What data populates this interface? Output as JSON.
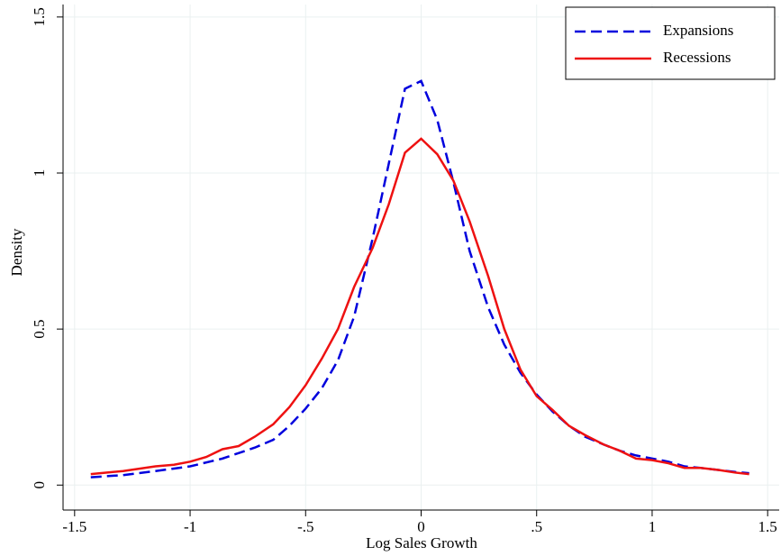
{
  "chart_data": {
    "type": "line",
    "xlabel": "Log Sales Growth",
    "ylabel": "Density",
    "xlim": [
      -1.55,
      1.55
    ],
    "ylim": [
      -0.08,
      1.54
    ],
    "xticks": [
      -1.5,
      -1,
      {
        "value": -0.5,
        "label": "-.5"
      },
      0,
      {
        "value": 0.5,
        "label": ".5"
      },
      1,
      1.5
    ],
    "yticks": [
      0,
      0.5,
      1,
      1.5
    ],
    "grid": true,
    "legend": "top-right",
    "series": [
      {
        "name": "Expansions",
        "color": "#0000dd",
        "style": "dashed",
        "x": [
          -1.43,
          -1.29,
          -1.15,
          -1.0,
          -0.86,
          -0.72,
          -0.64,
          -0.57,
          -0.5,
          -0.43,
          -0.36,
          -0.29,
          -0.21,
          -0.14,
          -0.07,
          0,
          0.07,
          0.14,
          0.21,
          0.29,
          0.36,
          0.43,
          0.5,
          0.57,
          0.64,
          0.71,
          0.79,
          0.86,
          0.93,
          1.0,
          1.07,
          1.14,
          1.21,
          1.29,
          1.36,
          1.42
        ],
        "values": [
          0.025,
          0.032,
          0.045,
          0.06,
          0.085,
          0.12,
          0.145,
          0.19,
          0.245,
          0.31,
          0.4,
          0.54,
          0.79,
          1.03,
          1.27,
          1.295,
          1.17,
          0.97,
          0.75,
          0.57,
          0.45,
          0.36,
          0.29,
          0.235,
          0.19,
          0.155,
          0.13,
          0.11,
          0.095,
          0.085,
          0.075,
          0.06,
          0.055,
          0.048,
          0.042,
          0.038
        ]
      },
      {
        "name": "Recessions",
        "color": "#ee1111",
        "style": "solid",
        "x": [
          -1.43,
          -1.29,
          -1.15,
          -1.07,
          -1.0,
          -0.93,
          -0.86,
          -0.79,
          -0.72,
          -0.64,
          -0.57,
          -0.5,
          -0.43,
          -0.36,
          -0.29,
          -0.21,
          -0.14,
          -0.07,
          0,
          0.07,
          0.14,
          0.21,
          0.29,
          0.36,
          0.43,
          0.5,
          0.57,
          0.64,
          0.71,
          0.79,
          0.86,
          0.93,
          1.0,
          1.07,
          1.14,
          1.21,
          1.29,
          1.36,
          1.42
        ],
        "values": [
          0.035,
          0.045,
          0.06,
          0.065,
          0.075,
          0.09,
          0.115,
          0.125,
          0.155,
          0.195,
          0.25,
          0.32,
          0.405,
          0.5,
          0.635,
          0.76,
          0.9,
          1.065,
          1.11,
          1.06,
          0.975,
          0.845,
          0.67,
          0.5,
          0.37,
          0.285,
          0.24,
          0.19,
          0.16,
          0.13,
          0.11,
          0.085,
          0.08,
          0.07,
          0.055,
          0.055,
          0.048,
          0.04,
          0.035
        ]
      }
    ]
  }
}
